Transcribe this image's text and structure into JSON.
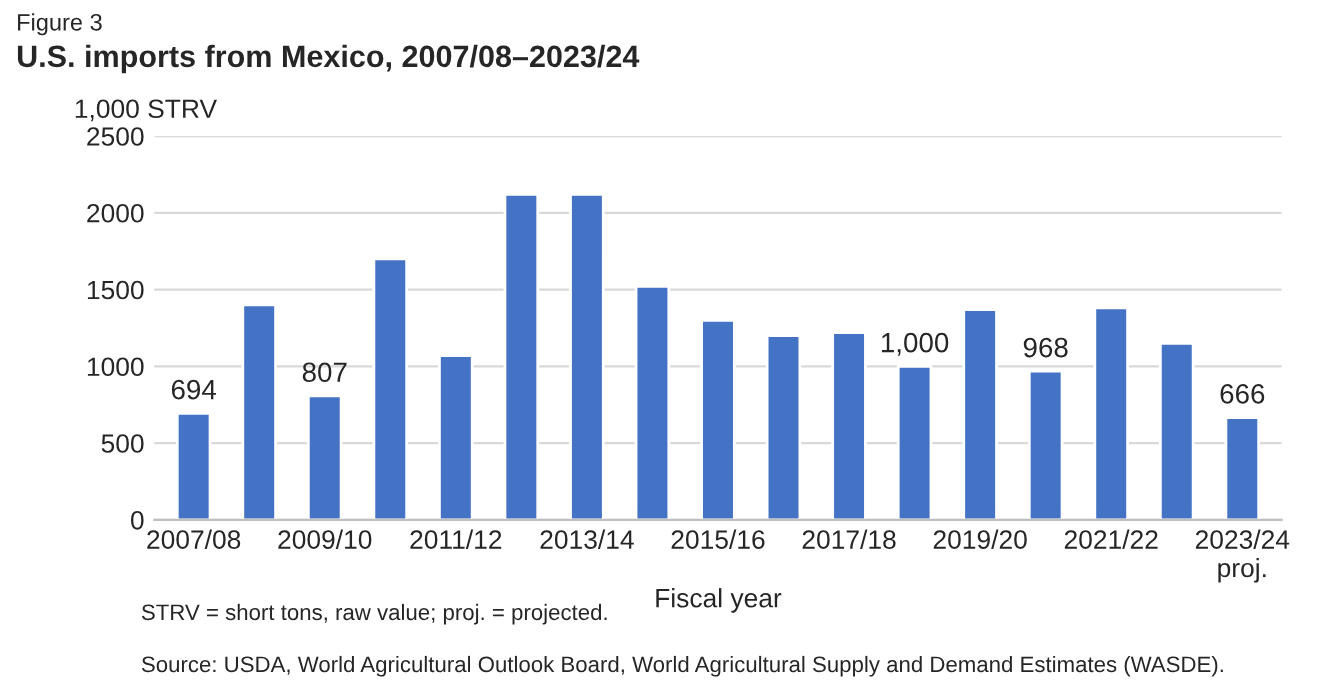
{
  "chart_data": {
    "type": "bar",
    "subtitle": "Figure 3",
    "title": "U.S. imports from Mexico, 2007/08–2023/24",
    "ylabel": "1,000 STRV",
    "xlabel": "Fiscal year",
    "categories": [
      "2007/08",
      null,
      "2009/10",
      null,
      "2011/12",
      null,
      "2013/14",
      null,
      "2015/16",
      null,
      "2017/18",
      null,
      "2019/20",
      null,
      "2021/22",
      null,
      "2023/24\nproj."
    ],
    "values": [
      694,
      1400,
      807,
      1700,
      1070,
      2120,
      2120,
      1520,
      1300,
      1200,
      1220,
      1000,
      1370,
      968,
      1380,
      1150,
      666
    ],
    "value_labels": [
      "694",
      null,
      "807",
      null,
      null,
      null,
      null,
      null,
      null,
      null,
      null,
      "1,000",
      null,
      "968",
      null,
      null,
      "666"
    ],
    "color": "#4472c4",
    "ylim": [
      0,
      2500
    ],
    "yticks": [
      0,
      500,
      1000,
      1500,
      2000,
      2500
    ],
    "grid": "y",
    "legend": false,
    "annotations": [
      "STRV = short tons, raw value; proj. = projected.",
      "Source: USDA, World Agricultural Outlook Board, World Agricultural Supply and Demand Estimates (WASDE)."
    ]
  }
}
